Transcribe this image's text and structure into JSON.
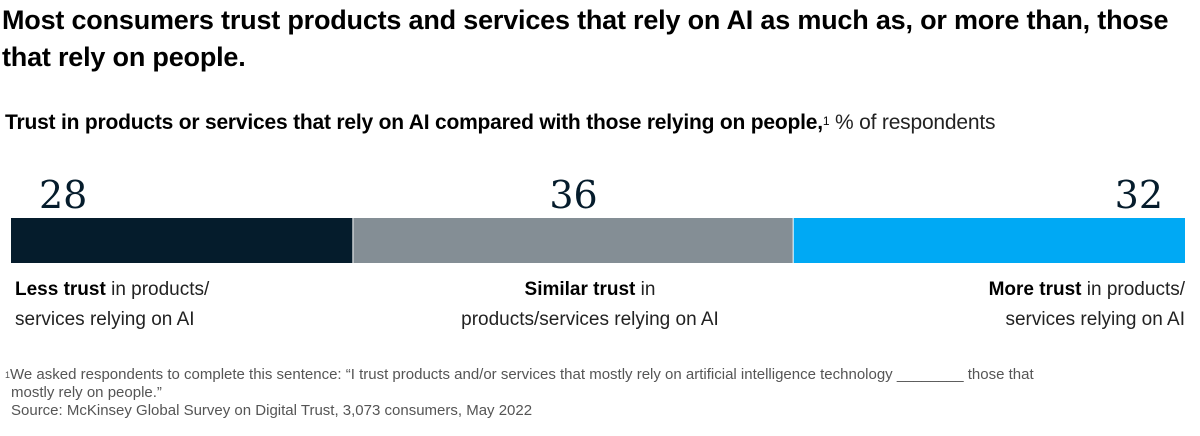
{
  "title": "Most consumers trust products and services that rely on AI as much as, or more than, those that rely on people.",
  "subtitle": {
    "bold": "Trust in products or services that rely on AI compared with those relying on people,",
    "footnote_marker": "1",
    "unit": " % of respondents"
  },
  "chart_data": {
    "type": "bar",
    "orientation": "horizontal-stacked-100",
    "title": "Trust in products or services that rely on AI compared with those relying on people",
    "unit": "% of respondents",
    "categories": [
      "Less trust",
      "Similar trust",
      "More trust"
    ],
    "values": [
      28,
      36,
      32
    ],
    "data_labels": [
      "28",
      "36",
      "32"
    ],
    "colors": [
      "#051C2C",
      "#848E95",
      "#00A9F4"
    ],
    "xlim": [
      0,
      96
    ],
    "grid": false,
    "legend": "below-segments",
    "segment_labels": [
      {
        "bold": "Less trust",
        "rest_line1": " in products/",
        "line2": "services relying on AI"
      },
      {
        "bold": "Similar trust",
        "rest_line1": " in",
        "line2": "products/services relying on AI"
      },
      {
        "bold": "More trust",
        "rest_line1": " in products/",
        "line2": "services relying on AI"
      }
    ]
  },
  "footnotes": {
    "marker": "1",
    "note_line1": "We asked respondents to complete this sentence: “I trust products and/or services that mostly rely on artificial intelligence technology ________ those that",
    "note_line2": "mostly rely on people.”",
    "source": "Source: McKinsey Global Survey on Digital Trust, 3,073 consumers, May 2022"
  }
}
